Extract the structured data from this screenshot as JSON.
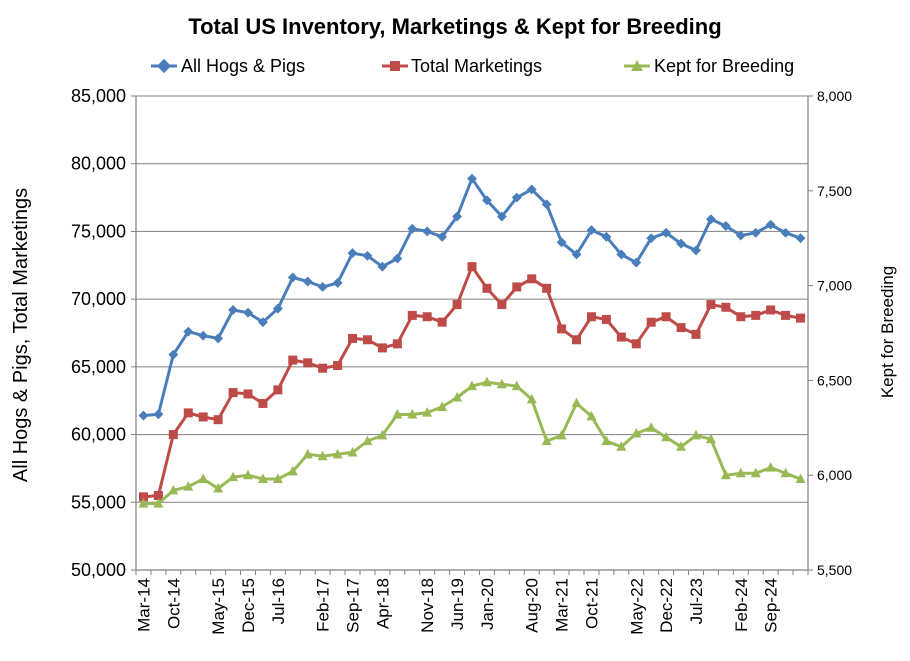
{
  "chart_data": {
    "type": "line",
    "title": "Total US Inventory, Marketings & Kept for Breeding",
    "ylabel": "All Hogs & Pigs,  Total Marketings",
    "y2label": "Kept for Breeding",
    "ylim": [
      50000,
      85000
    ],
    "y2lim": [
      5500,
      8000
    ],
    "yticks": [
      "50,000",
      "55,000",
      "60,000",
      "65,000",
      "70,000",
      "75,000",
      "80,000",
      "85,000"
    ],
    "y2ticks": [
      "5,500",
      "6,000",
      "6,500",
      "7,000",
      "7,500",
      "8,000"
    ],
    "xtick_labels": [
      "Mar-14",
      "Oct-14",
      "May-15",
      "Dec-15",
      "Jul-16",
      "Feb-17",
      "Sep-17",
      "Apr-18",
      "Nov-18",
      "Jun-19",
      "Jan-20",
      "Aug-20",
      "Mar-21",
      "Oct-21",
      "May-22",
      "Dec-22",
      "Jul-23",
      "Feb-24",
      "Sep-24"
    ],
    "grid": true,
    "legend_position": "top",
    "n_points": 45,
    "series": [
      {
        "name": "All Hogs & Pigs",
        "axis": "left",
        "marker": "diamond",
        "color": "#4a7ebb",
        "values": [
          61400,
          61500,
          65900,
          67600,
          67300,
          67100,
          69200,
          69000,
          68300,
          69300,
          71600,
          71300,
          70900,
          71200,
          73400,
          73200,
          72400,
          73000,
          75200,
          75000,
          74600,
          76100,
          78900,
          77300,
          76100,
          77500,
          78100,
          77000,
          74200,
          73300,
          75100,
          74600,
          73300,
          72700,
          74500,
          74900,
          74100,
          73600,
          75900,
          75400,
          74700,
          74900,
          75500,
          74900,
          74500
        ]
      },
      {
        "name": "Total Marketings",
        "axis": "left",
        "marker": "square",
        "color": "#be4b48",
        "values": [
          55400,
          55500,
          60000,
          61600,
          61300,
          61100,
          63100,
          63000,
          62300,
          63300,
          65500,
          65300,
          64900,
          65100,
          67100,
          67000,
          66400,
          66700,
          68800,
          68700,
          68300,
          69600,
          72400,
          70800,
          69600,
          70900,
          71500,
          70800,
          67800,
          67000,
          68700,
          68500,
          67200,
          66700,
          68300,
          68700,
          67900,
          67400,
          69600,
          69400,
          68700,
          68800,
          69200,
          68800,
          68600
        ]
      },
      {
        "name": "Kept for Breeding",
        "axis": "right",
        "marker": "triangle",
        "color": "#98b954",
        "values": [
          5850,
          5850,
          5920,
          5940,
          5980,
          5930,
          5990,
          6000,
          5980,
          5980,
          6020,
          6110,
          6100,
          6110,
          6120,
          6180,
          6210,
          6320,
          6320,
          6330,
          6360,
          6410,
          6470,
          6490,
          6480,
          6470,
          6400,
          6180,
          6210,
          6380,
          6310,
          6180,
          6150,
          6220,
          6250,
          6200,
          6150,
          6210,
          6190,
          6000,
          6010,
          6010,
          6040,
          6010,
          5980
        ]
      }
    ]
  }
}
